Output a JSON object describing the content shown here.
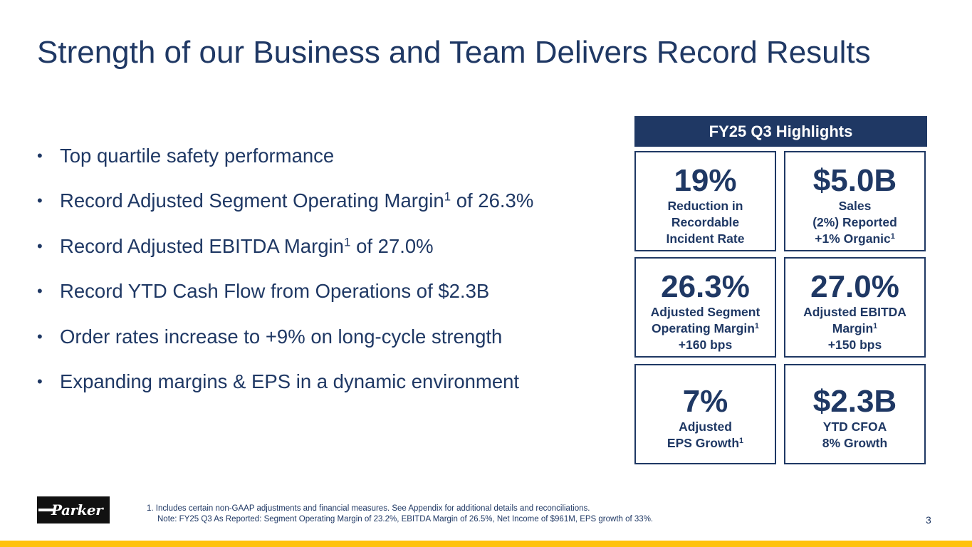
{
  "slide": {
    "title": "Strength of our Business and Team Delivers Record Results",
    "page_number": "3"
  },
  "bullets": [
    {
      "text": "Top quartile safety performance"
    },
    {
      "pre": "Record Adjusted Segment Operating Margin",
      "sup": "1",
      "post": " of 26.3%"
    },
    {
      "pre": "Record Adjusted EBITDA Margin",
      "sup": "1",
      "post": " of 27.0%"
    },
    {
      "text": "Record YTD Cash Flow from Operations of $2.3B"
    },
    {
      "text": "Order rates increase to +9% on long-cycle strength"
    },
    {
      "text": "Expanding margins & EPS in a dynamic environment"
    }
  ],
  "bullet_glyph": "•",
  "highlights": {
    "header": "FY25 Q3 Highlights",
    "cards": [
      {
        "value": "19%",
        "lines": [
          "Reduction in",
          "Recordable",
          "Incident Rate"
        ]
      },
      {
        "value": "$5.0B",
        "lines": [
          "Sales",
          "(2%) Reported"
        ],
        "line3_pre": "+1% Organic",
        "line3_sup": "1"
      },
      {
        "value": "26.3%",
        "lines": [
          "Adjusted Segment"
        ],
        "line2_pre": "Operating Margin",
        "line2_sup": "1",
        "line3": "+160 bps"
      },
      {
        "value": "27.0%",
        "lines": [
          "Adjusted EBITDA"
        ],
        "line2_pre": "Margin",
        "line2_sup": "1",
        "line3": "+150 bps"
      },
      {
        "value": "7%",
        "lines": [
          "Adjusted"
        ],
        "line2_pre": "EPS Growth",
        "line2_sup": "1"
      },
      {
        "value": "$2.3B",
        "lines": [
          "YTD CFOA",
          "8% Growth"
        ]
      }
    ]
  },
  "footer": {
    "logo_text": "Parker",
    "footnote_1": "1. Includes certain non-GAAP adjustments and financial measures. See Appendix for additional details and reconciliations.",
    "footnote_2": "Note: FY25 Q3 As Reported: Segment Operating Margin of 23.2%, EBITDA Margin of 26.5%, Net Income of $961M, EPS growth of 33%."
  },
  "colors": {
    "navy": "#1f3864",
    "gold": "#ffc20e",
    "logo_bg": "#111111"
  }
}
